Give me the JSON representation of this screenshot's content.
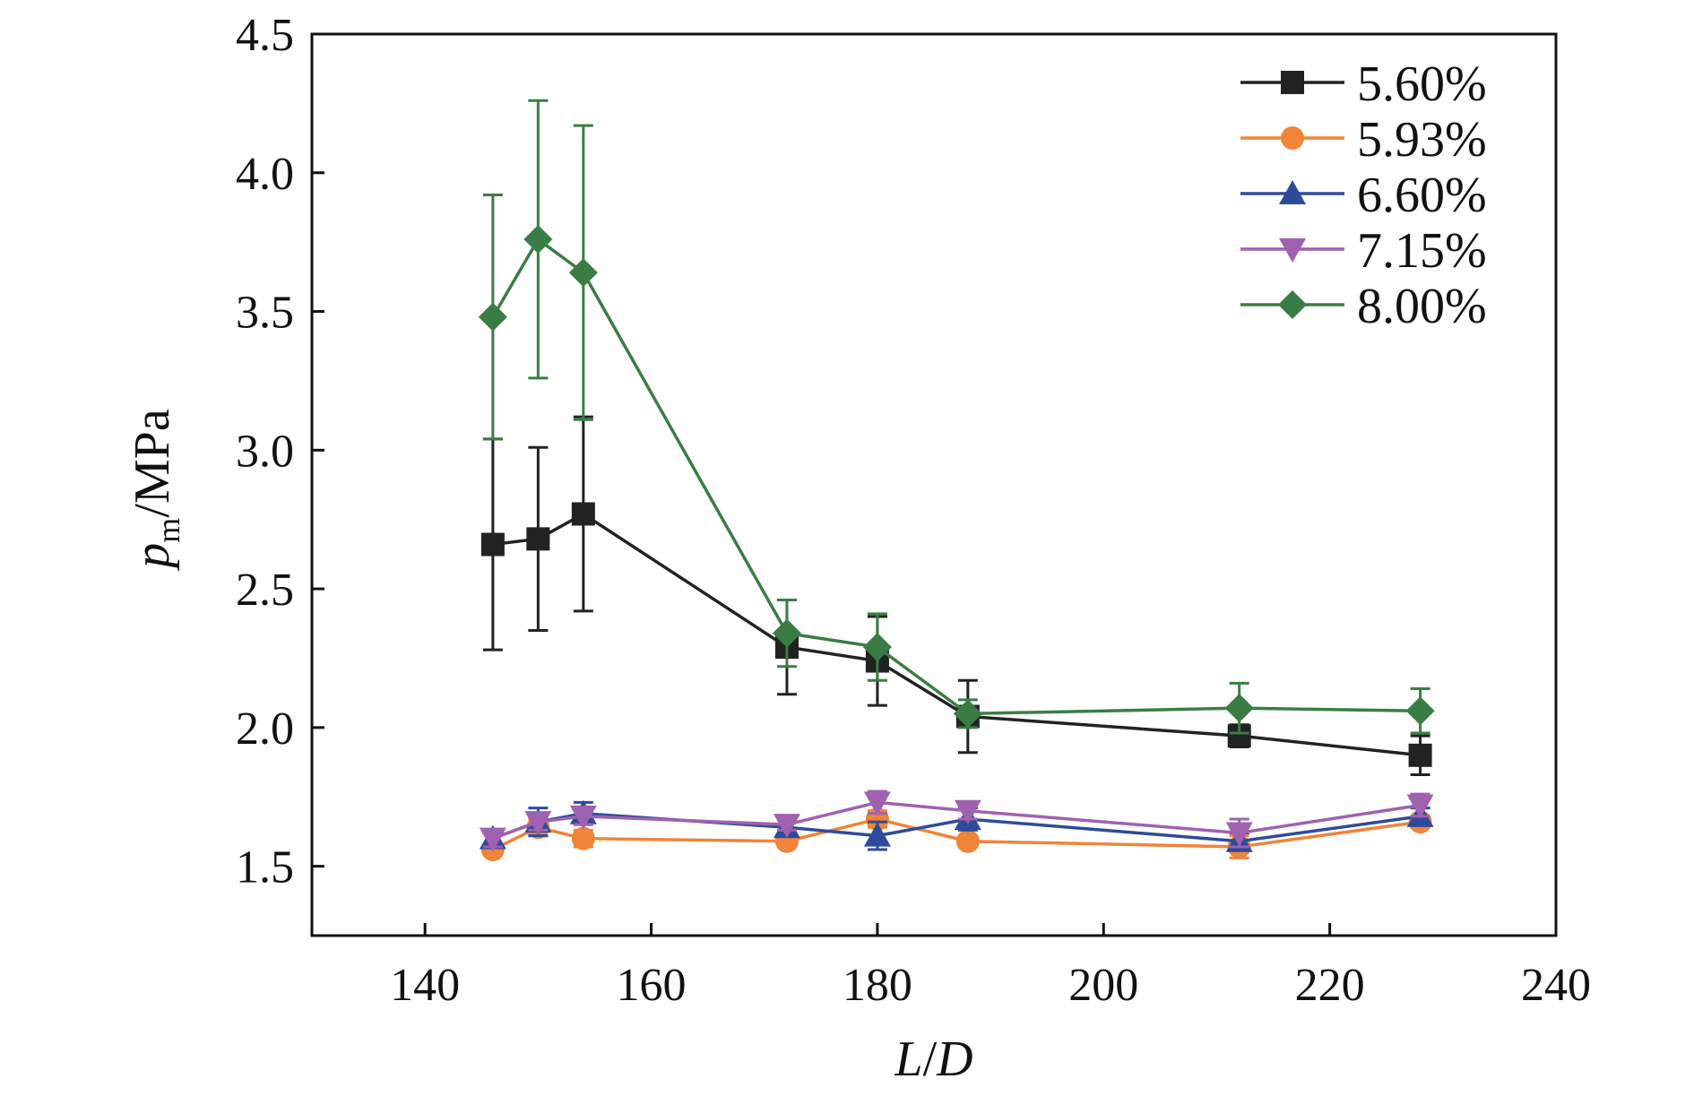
{
  "chart_data": {
    "type": "line",
    "xlabel": {
      "italic": "L",
      "sep": "/",
      "italic2": "D"
    },
    "ylabel": {
      "var": "p",
      "sub": "m",
      "unit": "/MPa"
    },
    "xlim": [
      130,
      240
    ],
    "ylim": [
      1.25,
      4.5
    ],
    "xticks": [
      140,
      160,
      180,
      200,
      220,
      240
    ],
    "yticks": [
      1.5,
      2.0,
      2.5,
      3.0,
      3.5,
      4.0,
      4.5
    ],
    "xtick_labels": [
      "140",
      "160",
      "180",
      "200",
      "220",
      "240"
    ],
    "ytick_labels": [
      "1.5",
      "2.0",
      "2.5",
      "3.0",
      "3.5",
      "4.0",
      "4.5"
    ],
    "grid": false,
    "legend_position": "top-right",
    "x": [
      146,
      150,
      154,
      172,
      180,
      188,
      212,
      228
    ],
    "series": [
      {
        "name": "5.60%",
        "color": "#222222",
        "marker": "square",
        "values": [
          2.66,
          2.68,
          2.77,
          2.29,
          2.24,
          2.04,
          1.97,
          1.9
        ],
        "errors": [
          0.38,
          0.33,
          0.35,
          0.17,
          0.16,
          0.13,
          0.04,
          0.07
        ]
      },
      {
        "name": "5.93%",
        "color": "#f08437",
        "marker": "circle",
        "values": [
          1.56,
          1.64,
          1.6,
          1.59,
          1.67,
          1.59,
          1.57,
          1.66
        ],
        "errors": [
          0.02,
          0.03,
          0.03,
          0.02,
          0.03,
          0.02,
          0.04,
          0.02
        ]
      },
      {
        "name": "6.60%",
        "color": "#2e4b9b",
        "marker": "triangle-up",
        "values": [
          1.6,
          1.66,
          1.69,
          1.64,
          1.61,
          1.67,
          1.59,
          1.68
        ],
        "errors": [
          0.02,
          0.05,
          0.04,
          0.03,
          0.05,
          0.04,
          0.03,
          0.03
        ]
      },
      {
        "name": "7.15%",
        "color": "#a061b0",
        "marker": "triangle-down",
        "values": [
          1.6,
          1.66,
          1.68,
          1.65,
          1.73,
          1.7,
          1.62,
          1.72
        ],
        "errors": [
          0.03,
          0.03,
          0.03,
          0.02,
          0.04,
          0.03,
          0.05,
          0.04
        ]
      },
      {
        "name": "8.00%",
        "color": "#3a7d44",
        "marker": "diamond",
        "values": [
          3.48,
          3.76,
          3.64,
          2.34,
          2.29,
          2.05,
          2.07,
          2.06
        ],
        "errors": [
          0.44,
          0.5,
          0.53,
          0.12,
          0.12,
          0.05,
          0.09,
          0.08
        ]
      }
    ]
  }
}
